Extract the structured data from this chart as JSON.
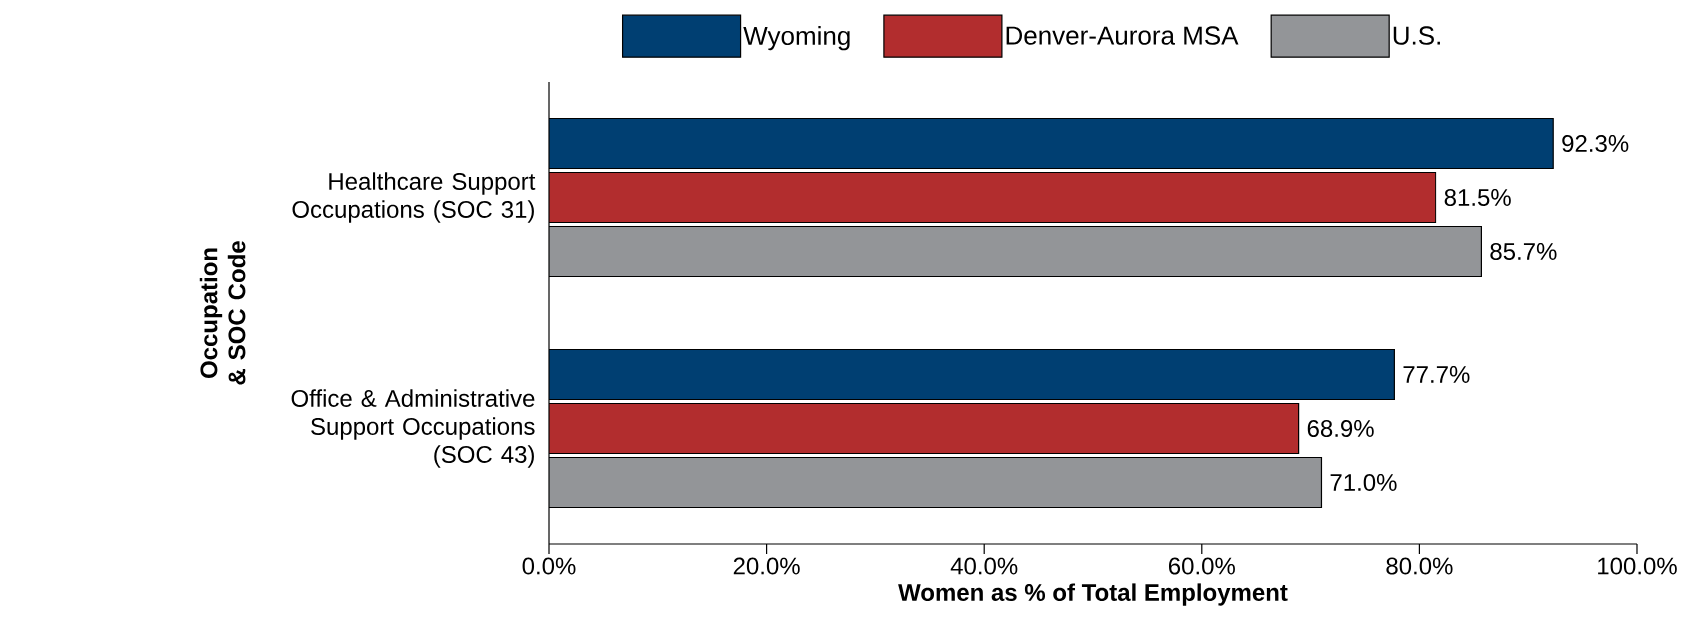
{
  "chart_data": {
    "type": "bar",
    "orientation": "horizontal",
    "categories": [
      "Healthcare Support Occupations (SOC 31)",
      "Office & Administrative Support Occupations (SOC 43)"
    ],
    "series": [
      {
        "name": "Wyoming",
        "color": "#003f72",
        "values": [
          92.3,
          77.7
        ],
        "value_labels": [
          "92.3%",
          "77.7%"
        ]
      },
      {
        "name": "Denver-Aurora MSA",
        "color": "#b22d2e",
        "values": [
          81.5,
          68.9
        ],
        "value_labels": [
          "81.5%",
          "68.9%"
        ]
      },
      {
        "name": "U.S.",
        "color": "#939598",
        "values": [
          85.7,
          71.0
        ],
        "value_labels": [
          "85.7%",
          "71.0%"
        ]
      }
    ],
    "xlabel": "Women as % of Total Employment",
    "ylabel": "Occupation & SOC Code",
    "xlim": [
      0,
      100
    ],
    "xticks": [
      {
        "value": 0,
        "label": "0.0%"
      },
      {
        "value": 20,
        "label": "20.0%"
      },
      {
        "value": 40,
        "label": "40.0%"
      },
      {
        "value": 60,
        "label": "60.0%"
      },
      {
        "value": 80,
        "label": "80.0%"
      },
      {
        "value": 100,
        "label": "100.0%"
      }
    ],
    "legend": "top",
    "grid": false
  }
}
